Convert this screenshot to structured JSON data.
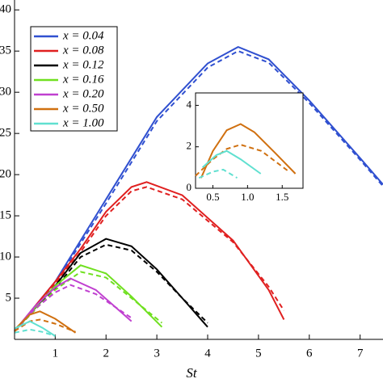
{
  "chart_data": [
    {
      "type": "line",
      "xlabel": "St",
      "xlim": [
        0.2,
        7.45
      ],
      "ylim": [
        0,
        41.2
      ],
      "xticks": [
        1,
        2,
        3,
        4,
        5,
        6,
        7
      ],
      "yticks": [
        5,
        10,
        15,
        20,
        25,
        30,
        35,
        40
      ],
      "legend": "upper left",
      "series": [
        {
          "name": "x = 0.04",
          "color": "#3050d0",
          "x": [
            0.2,
            1,
            2,
            3,
            4,
            4.6,
            5.2,
            6,
            7,
            7.45
          ],
          "values": [
            1,
            7,
            17,
            27,
            33.5,
            35.5,
            34,
            29,
            22,
            18.8
          ],
          "dashed_values": [
            1,
            6.8,
            16.5,
            26.5,
            33,
            35,
            33.6,
            28.7,
            21.8,
            18.6
          ]
        },
        {
          "name": "x = 0.08",
          "color": "#e02020",
          "x": [
            0.2,
            1,
            1.5,
            2,
            2.5,
            2.8,
            3.5,
            4.5,
            5.2,
            5.5
          ],
          "values": [
            1,
            7,
            11,
            15.5,
            18.5,
            19.1,
            17.5,
            12,
            6,
            2.4
          ],
          "dashed_values": [
            1,
            6.8,
            10.6,
            15,
            18,
            18.5,
            17,
            11.8,
            6.4,
            3.5
          ]
        },
        {
          "name": "x = 0.12",
          "color": "#000000",
          "x": [
            0.2,
            1,
            1.5,
            2,
            2.5,
            3,
            3.5,
            4
          ],
          "values": [
            1,
            6.5,
            10.5,
            12.2,
            11.3,
            8.5,
            5,
            1.5
          ],
          "dashed_values": [
            1,
            6.2,
            10,
            11.5,
            10.8,
            8.2,
            5,
            2
          ]
        },
        {
          "name": "x = 0.16",
          "color": "#70e020",
          "x": [
            0.2,
            0.7,
            1,
            1.5,
            2,
            2.5,
            3.1
          ],
          "values": [
            1,
            4.5,
            6.5,
            9,
            8,
            5.2,
            1.5
          ],
          "dashed_values": [
            1,
            4.2,
            6,
            8.2,
            7.5,
            5,
            2
          ]
        },
        {
          "name": "x = 0.20",
          "color": "#c040d0",
          "x": [
            0.2,
            0.6,
            1,
            1.3,
            1.8,
            2.5
          ],
          "values": [
            1,
            4,
            6.3,
            7.4,
            6,
            2.2
          ],
          "dashed_values": [
            1,
            3.7,
            5.7,
            6.6,
            5.5,
            2.6
          ]
        },
        {
          "name": "x = 0.50",
          "color": "#d07010",
          "x": [
            0.2,
            0.5,
            0.7,
            1,
            1.4
          ],
          "values": [
            1.2,
            3,
            3.4,
            2.5,
            0.8
          ],
          "dashed_values": [
            1,
            2.2,
            2.4,
            1.9,
            0.9
          ]
        },
        {
          "name": "x = 1.00",
          "color": "#60e0d0",
          "x": [
            0.2,
            0.5,
            0.75,
            1
          ],
          "values": [
            1.3,
            2.2,
            1.4,
            0.4
          ],
          "dashed_values": [
            0.8,
            1.2,
            0.9,
            0.4
          ]
        }
      ]
    },
    {
      "type": "line",
      "xlim": [
        0.25,
        1.8
      ],
      "ylim": [
        0,
        4.6
      ],
      "xticks": [
        {
          "value": 0.5,
          "label": "0.5"
        },
        {
          "value": 1,
          "label": "1.0"
        },
        {
          "value": 1.5,
          "label": "1.5"
        }
      ],
      "yticks": [
        0,
        2,
        4
      ],
      "series": [
        {
          "color": "#d07010",
          "x": [
            0.33,
            0.5,
            0.7,
            0.9,
            1.1,
            1.4,
            1.69
          ],
          "values": [
            0.5,
            1.8,
            2.8,
            3.1,
            2.7,
            1.7,
            0.7
          ],
          "dashed_x": [
            0.25,
            0.5,
            0.7,
            0.9,
            1.2,
            1.6
          ],
          "dashed_values": [
            0.6,
            1.4,
            1.9,
            2.1,
            1.8,
            0.8
          ]
        },
        {
          "color": "#60e0d0",
          "x": [
            0.35,
            0.55,
            0.7,
            0.9,
            1.19
          ],
          "values": [
            1,
            1.6,
            1.8,
            1.4,
            0.7
          ],
          "dashed_x": [
            0.3,
            0.5,
            0.65,
            0.85
          ],
          "dashed_values": [
            0.5,
            0.8,
            0.9,
            0.5
          ]
        }
      ]
    }
  ]
}
